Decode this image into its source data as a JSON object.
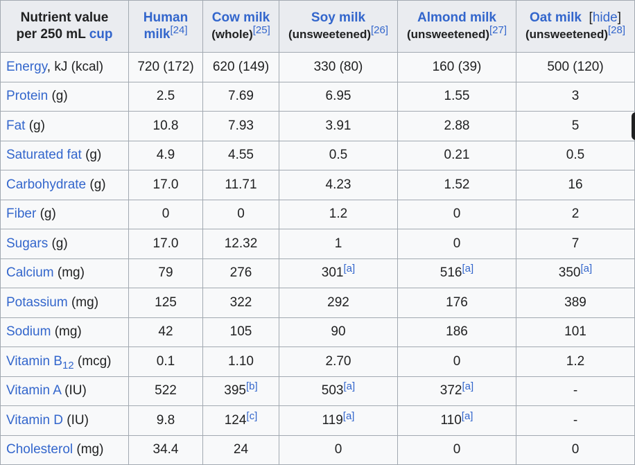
{
  "header": {
    "nutrient": {
      "line1": "Nutrient value",
      "line2_pre": "per 250 mL ",
      "line2_link": "cup"
    },
    "human": {
      "line1": "Human",
      "line2": "milk",
      "ref": "[24]"
    },
    "cow": {
      "line1": "Cow milk",
      "line2": "(whole)",
      "ref": "[25]"
    },
    "soy": {
      "line1": "Soy milk",
      "line2": "(unsweetened)",
      "ref": "[26]"
    },
    "almond": {
      "line1": "Almond milk",
      "line2": "(unsweetened)",
      "ref": "[27]"
    },
    "oat": {
      "line1": "Oat milk",
      "hide_open": "[",
      "hide_label": "hide",
      "hide_close": "]",
      "line2": "(unsweetened)",
      "ref": "[28]"
    }
  },
  "rows": [
    {
      "link": "Energy",
      "unit": ", kJ (kcal)",
      "values": [
        {
          "v": "720 (172)",
          "ref": ""
        },
        {
          "v": "620 (149)",
          "ref": ""
        },
        {
          "v": "330 (80)",
          "ref": ""
        },
        {
          "v": "160 (39)",
          "ref": ""
        },
        {
          "v": "500 (120)",
          "ref": ""
        }
      ]
    },
    {
      "link": "Protein",
      "unit": " (g)",
      "values": [
        {
          "v": "2.5",
          "ref": ""
        },
        {
          "v": "7.69",
          "ref": ""
        },
        {
          "v": "6.95",
          "ref": ""
        },
        {
          "v": "1.55",
          "ref": ""
        },
        {
          "v": "3",
          "ref": ""
        }
      ]
    },
    {
      "link": "Fat",
      "unit": " (g)",
      "values": [
        {
          "v": "10.8",
          "ref": ""
        },
        {
          "v": "7.93",
          "ref": ""
        },
        {
          "v": "3.91",
          "ref": ""
        },
        {
          "v": "2.88",
          "ref": ""
        },
        {
          "v": "5",
          "ref": ""
        }
      ]
    },
    {
      "link": "Saturated fat",
      "unit": " (g)",
      "values": [
        {
          "v": "4.9",
          "ref": ""
        },
        {
          "v": "4.55",
          "ref": ""
        },
        {
          "v": "0.5",
          "ref": ""
        },
        {
          "v": "0.21",
          "ref": ""
        },
        {
          "v": "0.5",
          "ref": ""
        }
      ]
    },
    {
      "link": "Carbohydrate",
      "unit": " (g)",
      "values": [
        {
          "v": "17.0",
          "ref": ""
        },
        {
          "v": "11.71",
          "ref": ""
        },
        {
          "v": "4.23",
          "ref": ""
        },
        {
          "v": "1.52",
          "ref": ""
        },
        {
          "v": "16",
          "ref": ""
        }
      ]
    },
    {
      "link": "Fiber",
      "unit": " (g)",
      "values": [
        {
          "v": "0",
          "ref": ""
        },
        {
          "v": "0",
          "ref": ""
        },
        {
          "v": "1.2",
          "ref": ""
        },
        {
          "v": "0",
          "ref": ""
        },
        {
          "v": "2",
          "ref": ""
        }
      ]
    },
    {
      "link": "Sugars",
      "unit": " (g)",
      "values": [
        {
          "v": "17.0",
          "ref": ""
        },
        {
          "v": "12.32",
          "ref": ""
        },
        {
          "v": "1",
          "ref": ""
        },
        {
          "v": "0",
          "ref": ""
        },
        {
          "v": "7",
          "ref": ""
        }
      ]
    },
    {
      "link": "Calcium",
      "unit": " (mg)",
      "values": [
        {
          "v": "79",
          "ref": ""
        },
        {
          "v": "276",
          "ref": ""
        },
        {
          "v": "301",
          "ref": "[a]"
        },
        {
          "v": "516",
          "ref": "[a]"
        },
        {
          "v": "350",
          "ref": "[a]"
        }
      ]
    },
    {
      "link": "Potassium",
      "unit": " (mg)",
      "values": [
        {
          "v": "125",
          "ref": ""
        },
        {
          "v": "322",
          "ref": ""
        },
        {
          "v": "292",
          "ref": ""
        },
        {
          "v": "176",
          "ref": ""
        },
        {
          "v": "389",
          "ref": ""
        }
      ]
    },
    {
      "link": "Sodium",
      "unit": " (mg)",
      "values": [
        {
          "v": "42",
          "ref": ""
        },
        {
          "v": "105",
          "ref": ""
        },
        {
          "v": "90",
          "ref": ""
        },
        {
          "v": "186",
          "ref": ""
        },
        {
          "v": "101",
          "ref": ""
        }
      ]
    },
    {
      "link": "Vitamin B",
      "sub": "12",
      "unit": " (mcg)",
      "values": [
        {
          "v": "0.1",
          "ref": ""
        },
        {
          "v": "1.10",
          "ref": ""
        },
        {
          "v": "2.70",
          "ref": ""
        },
        {
          "v": "0",
          "ref": ""
        },
        {
          "v": "1.2",
          "ref": ""
        }
      ]
    },
    {
      "link": "Vitamin A",
      "unit": " (IU)",
      "values": [
        {
          "v": "522",
          "ref": ""
        },
        {
          "v": "395",
          "ref": "[b]"
        },
        {
          "v": "503",
          "ref": "[a]"
        },
        {
          "v": "372",
          "ref": "[a]"
        },
        {
          "v": "-",
          "ref": ""
        }
      ]
    },
    {
      "link": "Vitamin D",
      "unit": " (IU)",
      "values": [
        {
          "v": "9.8",
          "ref": ""
        },
        {
          "v": "124",
          "ref": "[c]"
        },
        {
          "v": "119",
          "ref": "[a]"
        },
        {
          "v": "110",
          "ref": "[a]"
        },
        {
          "v": "-",
          "ref": ""
        }
      ]
    },
    {
      "link": "Cholesterol",
      "unit": " (mg)",
      "values": [
        {
          "v": "34.4",
          "ref": ""
        },
        {
          "v": "24",
          "ref": ""
        },
        {
          "v": "0",
          "ref": ""
        },
        {
          "v": "0",
          "ref": ""
        },
        {
          "v": "0",
          "ref": ""
        }
      ]
    }
  ],
  "colors": {
    "link": "#3366cc",
    "text": "#202122",
    "header_bg": "#eaecf0",
    "cell_bg": "#f8f9fa",
    "border": "#a2a9b1"
  }
}
